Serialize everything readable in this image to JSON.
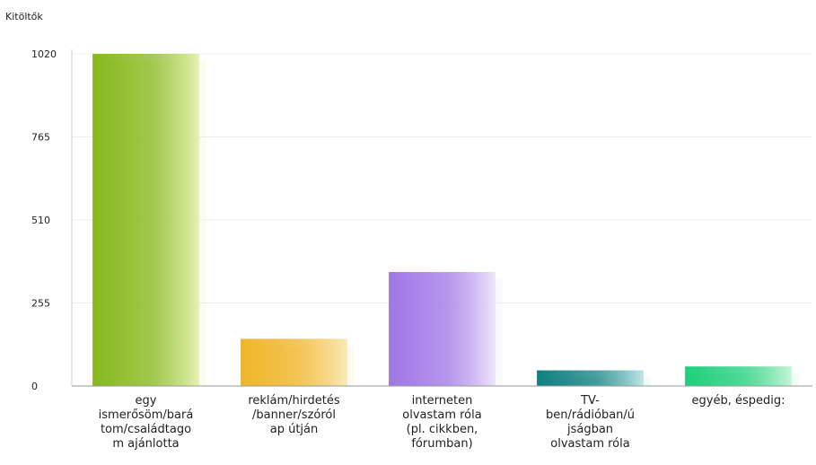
{
  "chart_data": {
    "type": "bar",
    "ylabel": "Kitöltők",
    "categories": [
      [
        "egy",
        "ismerősöm/bará",
        "tom/családtago",
        "m ajánlotta"
      ],
      [
        "reklám/hirdetés",
        "/banner/szóról",
        "ap útján"
      ],
      [
        "interneten",
        "olvastam róla",
        "(pl. cikkben,",
        "fórumban)"
      ],
      [
        "TV-",
        "ben/rádióban/ú",
        "jságban",
        "olvastam róla"
      ],
      [
        "egyéb, éspedig:"
      ]
    ],
    "values": [
      1020,
      145,
      350,
      48,
      60
    ],
    "ylim": [
      0,
      1020
    ],
    "yticks": [
      0,
      255,
      510,
      765,
      1020
    ],
    "grid": true,
    "legend": "none",
    "colors": [
      {
        "dark": "#86b81f",
        "light": "#e6f2b3"
      },
      {
        "dark": "#efb52a",
        "light": "#fbeab8"
      },
      {
        "dark": "#a077e6",
        "light": "#efe6fb"
      },
      {
        "dark": "#0f7f80",
        "light": "#bfe6e6"
      },
      {
        "dark": "#1fcf7b",
        "light": "#c6f5da"
      }
    ]
  }
}
